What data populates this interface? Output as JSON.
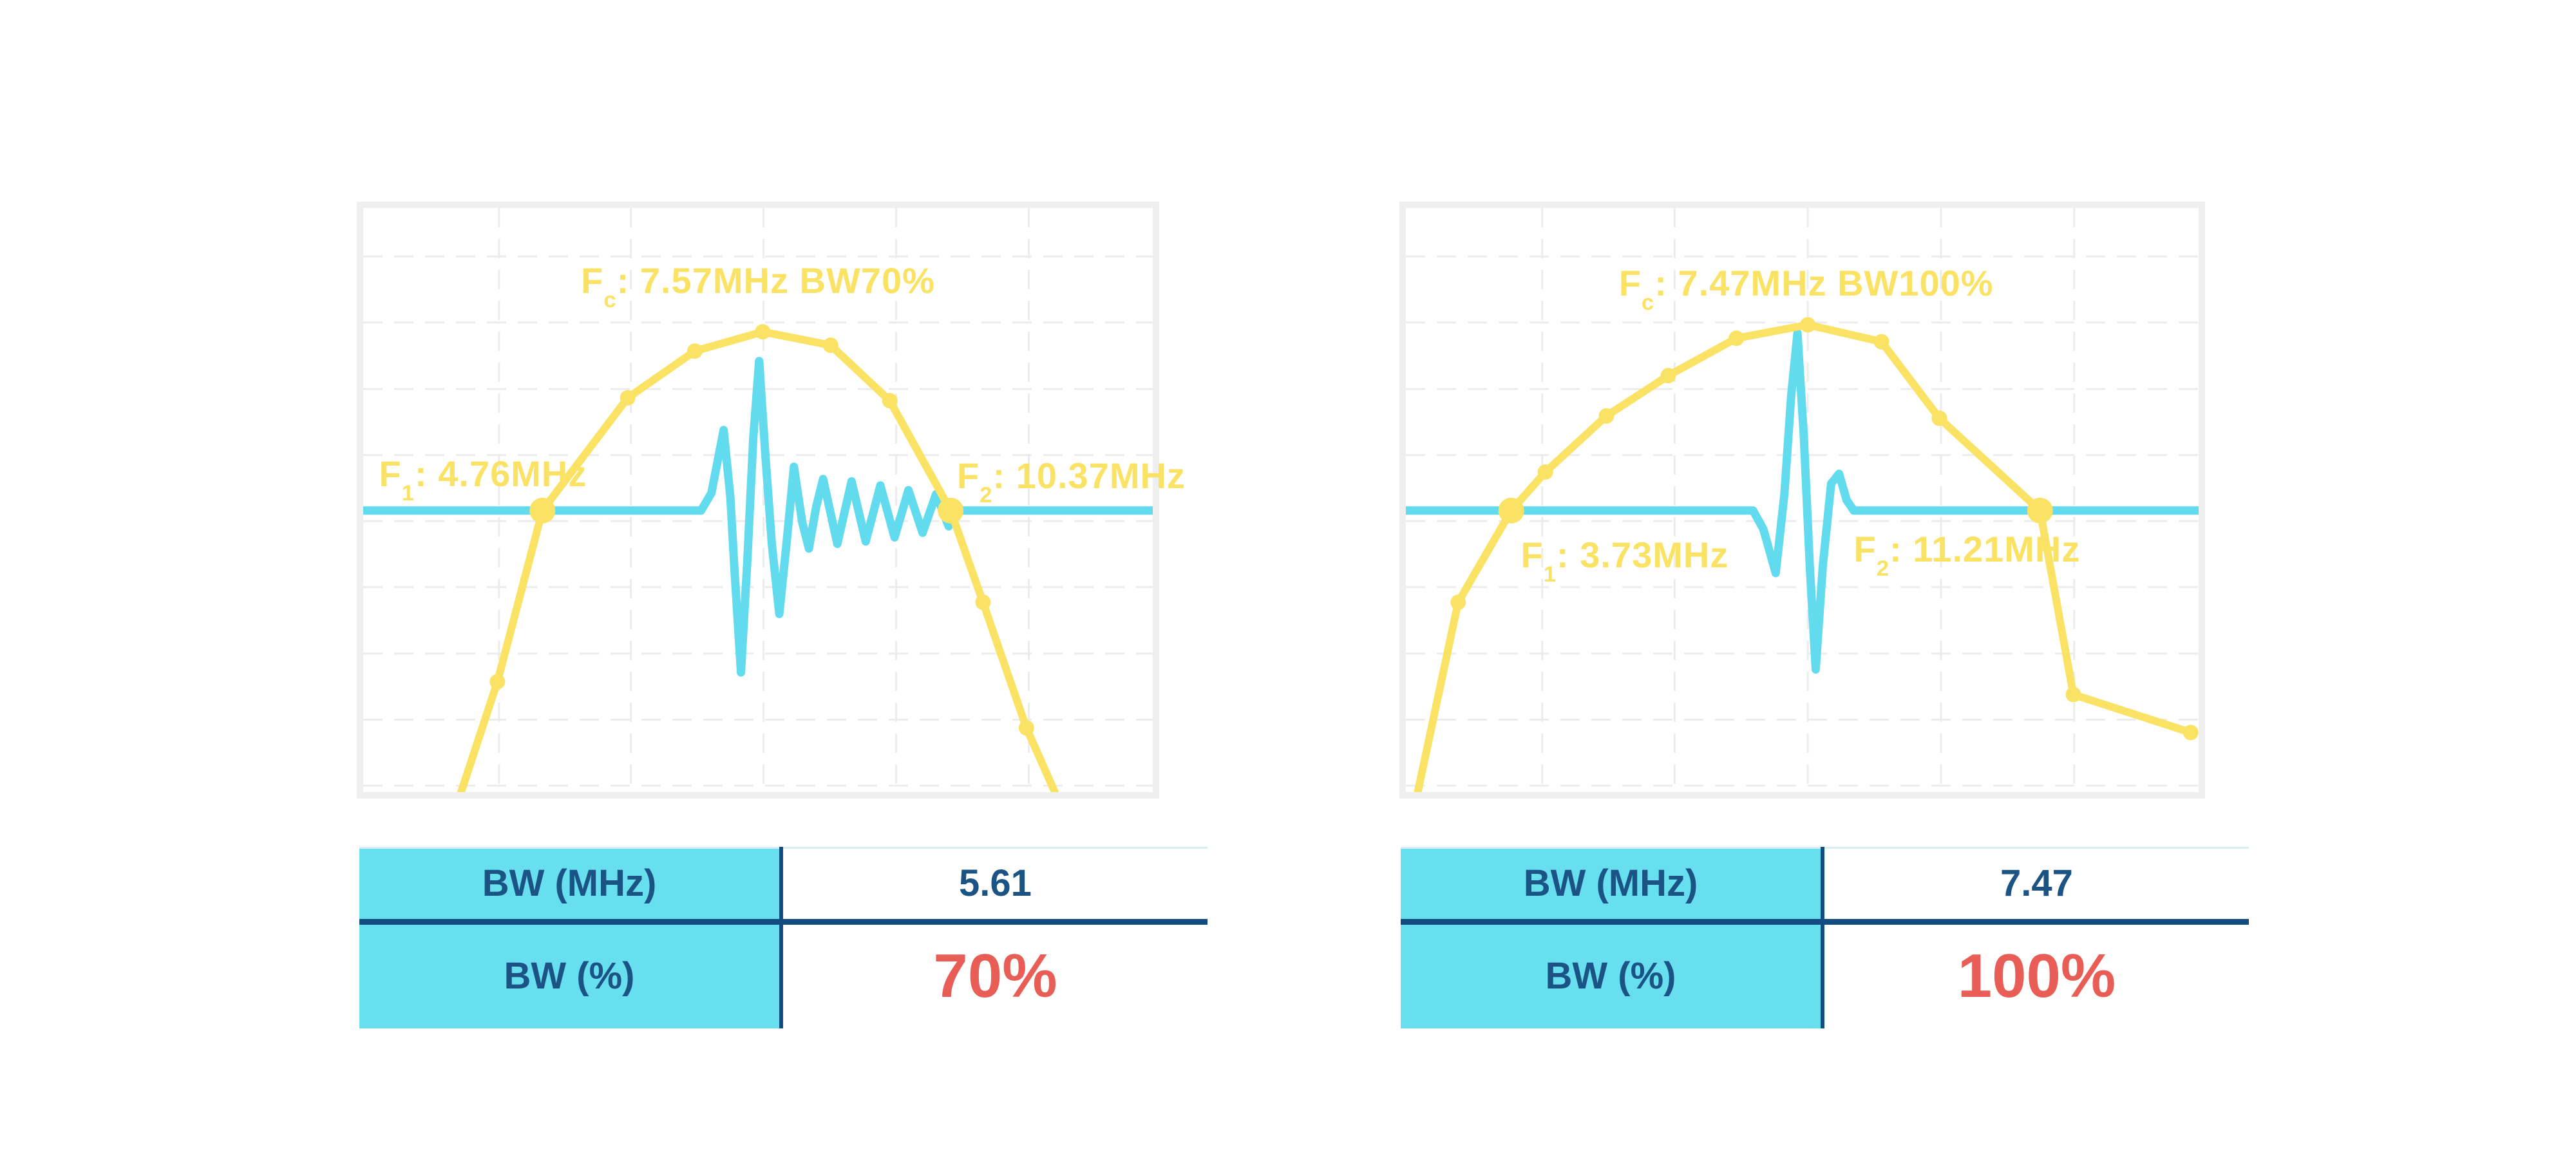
{
  "colors": {
    "yellow": "#FAE264",
    "cyan_wave": "#62DBEE",
    "table_cyan_bg": "#68DFEF",
    "navy_text": "#1B5384",
    "navy_line": "#124C80",
    "red_value": "#E85D55",
    "panel_border": "#EFEFEF",
    "grid": "#ECECEC",
    "table_top_line": "#D8EEF3"
  },
  "grid": {
    "v": [
      0.172,
      0.339,
      0.507,
      0.675,
      0.843
    ],
    "h": [
      0.083,
      0.196,
      0.31,
      0.423,
      0.536,
      0.649,
      0.763,
      0.876,
      0.989
    ]
  },
  "chart_data": [
    {
      "type": "line",
      "name": "pulse-spectrum-bw70",
      "fc_mhz": 7.57,
      "f1_mhz": 4.76,
      "f2_mhz": 10.37,
      "bw_mhz": 5.61,
      "bw_percent": 70,
      "annotations": {
        "fc": {
          "f": "F",
          "sub": "c",
          "rest": ": 7.57MHz BW70%"
        },
        "f1": {
          "f": "F",
          "sub": "1",
          "rest": ": 4.76MHz"
        },
        "f2": {
          "f": "F",
          "sub": "2",
          "rest": ": 10.37MHz"
        }
      },
      "series": [
        {
          "name": "spectrum",
          "points": [
            [
              0.124,
              1.0
            ],
            [
              0.17,
              0.811
            ],
            [
              0.227,
              0.518
            ],
            [
              0.335,
              0.325
            ],
            [
              0.42,
              0.245
            ],
            [
              0.506,
              0.212
            ],
            [
              0.592,
              0.235
            ],
            [
              0.667,
              0.33
            ],
            [
              0.744,
              0.518
            ],
            [
              0.785,
              0.675
            ],
            [
              0.84,
              0.89
            ],
            [
              0.876,
              1.0
            ]
          ],
          "marker_idx": [
            1,
            2,
            3,
            4,
            5,
            6,
            7,
            8,
            9,
            10
          ],
          "big_marker_idx": [
            2,
            8
          ]
        },
        {
          "name": "pulse",
          "points": [
            [
              0.0,
              0.518
            ],
            [
              0.428,
              0.518
            ],
            [
              0.441,
              0.488
            ],
            [
              0.4565,
              0.38
            ],
            [
              0.465,
              0.495
            ],
            [
              0.4705,
              0.625
            ],
            [
              0.4785,
              0.795
            ],
            [
              0.4865,
              0.605
            ],
            [
              0.494,
              0.395
            ],
            [
              0.5015,
              0.262
            ],
            [
              0.5095,
              0.425
            ],
            [
              0.5175,
              0.575
            ],
            [
              0.527,
              0.695
            ],
            [
              0.5365,
              0.57
            ],
            [
              0.5455,
              0.443
            ],
            [
              0.556,
              0.538
            ],
            [
              0.5645,
              0.583
            ],
            [
              0.5735,
              0.513
            ],
            [
              0.5825,
              0.464
            ],
            [
              0.6005,
              0.575
            ],
            [
              0.6185,
              0.468
            ],
            [
              0.6365,
              0.571
            ],
            [
              0.655,
              0.475
            ],
            [
              0.673,
              0.564
            ],
            [
              0.6905,
              0.483
            ],
            [
              0.7085,
              0.556
            ],
            [
              0.7255,
              0.49
            ],
            [
              0.7415,
              0.545
            ],
            [
              0.753,
              0.518
            ],
            [
              1.0,
              0.518
            ]
          ]
        }
      ],
      "table": {
        "rows": [
          {
            "label": "BW (MHz)",
            "value": "5.61"
          },
          {
            "label": "BW (%)",
            "value": "70%"
          }
        ]
      }
    },
    {
      "type": "line",
      "name": "pulse-spectrum-bw100",
      "fc_mhz": 7.47,
      "f1_mhz": 3.73,
      "f2_mhz": 11.21,
      "bw_mhz": 7.47,
      "bw_percent": 100,
      "annotations": {
        "fc": {
          "f": "F",
          "sub": "c",
          "rest": ": 7.47MHz BW100%"
        },
        "f1": {
          "f": "F",
          "sub": "1",
          "rest": ": 3.73MHz"
        },
        "f2": {
          "f": "F",
          "sub": "2",
          "rest": ": 11.21MHz"
        }
      },
      "series": [
        {
          "name": "spectrum",
          "points": [
            [
              0.015,
              1.0
            ],
            [
              0.066,
              0.675
            ],
            [
              0.133,
              0.518
            ],
            [
              0.176,
              0.452
            ],
            [
              0.253,
              0.356
            ],
            [
              0.331,
              0.287
            ],
            [
              0.417,
              0.223
            ],
            [
              0.507,
              0.2
            ],
            [
              0.6,
              0.229
            ],
            [
              0.673,
              0.36
            ],
            [
              0.8,
              0.518
            ],
            [
              0.842,
              0.833
            ],
            [
              0.99,
              0.898
            ]
          ],
          "marker_idx": [
            1,
            2,
            3,
            4,
            5,
            6,
            7,
            8,
            9,
            10,
            11,
            12
          ],
          "big_marker_idx": [
            2,
            10
          ]
        },
        {
          "name": "pulse",
          "points": [
            [
              0.0,
              0.518
            ],
            [
              0.438,
              0.518
            ],
            [
              0.451,
              0.55
            ],
            [
              0.4665,
              0.625
            ],
            [
              0.4775,
              0.49
            ],
            [
              0.486,
              0.322
            ],
            [
              0.494,
              0.214
            ],
            [
              0.502,
              0.392
            ],
            [
              0.5095,
              0.612
            ],
            [
              0.517,
              0.79
            ],
            [
              0.526,
              0.612
            ],
            [
              0.5365,
              0.472
            ],
            [
              0.5465,
              0.455
            ],
            [
              0.556,
              0.5
            ],
            [
              0.565,
              0.518
            ],
            [
              1.0,
              0.518
            ]
          ]
        }
      ],
      "table": {
        "rows": [
          {
            "label": "BW (MHz)",
            "value": "7.47"
          },
          {
            "label": "BW (%)",
            "value": "100%"
          }
        ]
      }
    }
  ]
}
